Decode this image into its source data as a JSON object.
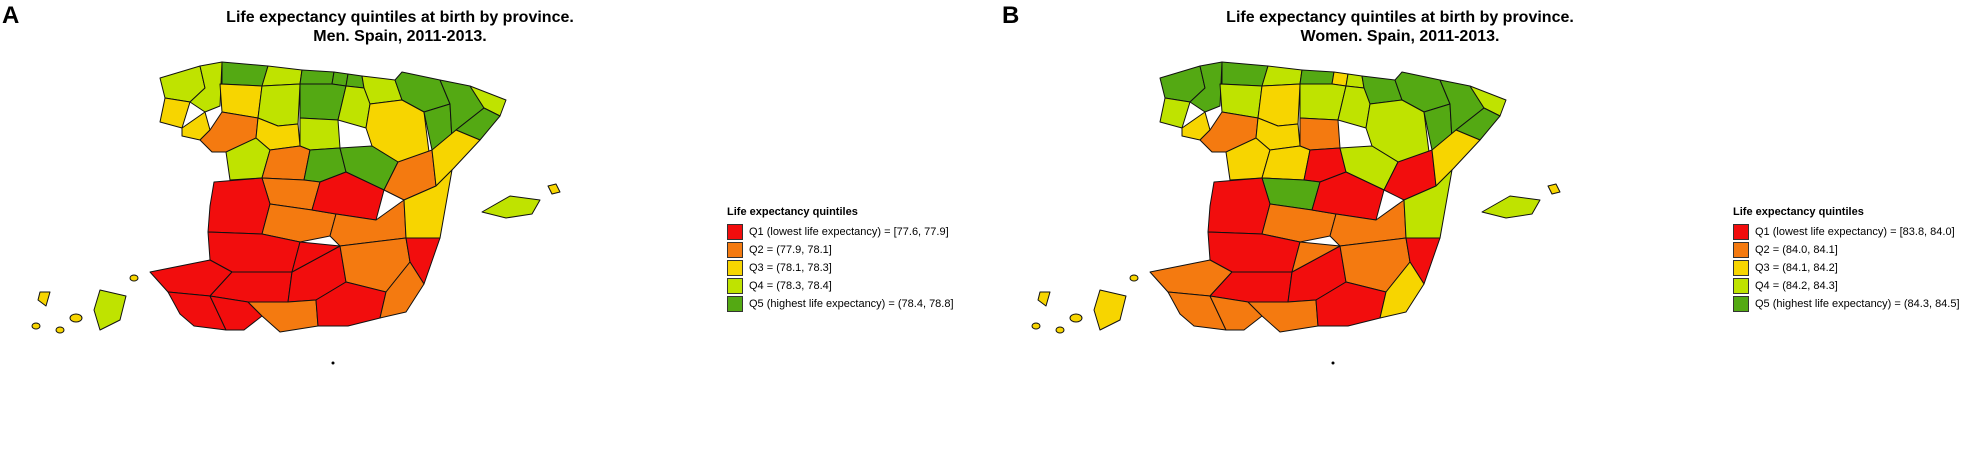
{
  "colors": {
    "q1": "#f20d0d",
    "q2": "#f47a10",
    "q3": "#f7d500",
    "q4": "#bfe300",
    "q5": "#54a913"
  },
  "panels": [
    {
      "letter": "A",
      "title_line1": "Life expectancy quintiles at birth by province.",
      "title_line2": "Men. Spain, 2011-2013.",
      "legend": {
        "title": "Life expectancy quintiles",
        "items": [
          {
            "label": "Q1 (lowest life expectancy) = [77.6, 77.9]",
            "quintile": "q1"
          },
          {
            "label": "Q2 = (77.9, 78.1]",
            "quintile": "q2"
          },
          {
            "label": "Q3 = (78.1, 78.3]",
            "quintile": "q3"
          },
          {
            "label": "Q4 = (78.3, 78.4]",
            "quintile": "q4"
          },
          {
            "label": "Q5 (highest life expectancy) = (78.4, 78.8]",
            "quintile": "q5"
          }
        ]
      },
      "provinces": [
        "q4",
        "q3",
        "q4",
        "q3",
        "q5",
        "q4",
        "q5",
        "q5",
        "q5",
        "q4",
        "q3",
        "q4",
        "q5",
        "q4",
        "q5",
        "q2",
        "q3",
        "q4",
        "q3",
        "q5",
        "q5",
        "q4",
        "q5",
        "q4",
        "q2",
        "q5",
        "q5",
        "q2",
        "q2",
        "q3",
        "q1",
        "q2",
        "q1",
        "q1",
        "q2",
        "q3",
        "q1",
        "q1",
        "q1",
        "q1",
        "q2",
        "q1",
        "q1",
        "q1",
        "q2",
        "q1",
        "q2",
        "q4",
        "q3",
        "q3",
        "q4"
      ]
    },
    {
      "letter": "B",
      "title_line1": "Life expectancy quintiles at birth by province.",
      "title_line2": "Women. Spain, 2011-2013.",
      "legend": {
        "title": "Life expectancy quintiles",
        "items": [
          {
            "label": "Q1 (lowest life expectancy) = [83.8, 84.0]",
            "quintile": "q1"
          },
          {
            "label": "Q2 = (84.0, 84.1]",
            "quintile": "q2"
          },
          {
            "label": "Q3 = (84.1, 84.2]",
            "quintile": "q3"
          },
          {
            "label": "Q4 = (84.2, 84.3]",
            "quintile": "q4"
          },
          {
            "label": "Q5 (highest life expectancy) = (84.3, 84.5]",
            "quintile": "q5"
          }
        ]
      },
      "provinces": [
        "q5",
        "q4",
        "q5",
        "q3",
        "q5",
        "q4",
        "q5",
        "q3",
        "q4",
        "q5",
        "q4",
        "q3",
        "q4",
        "q4",
        "q5",
        "q2",
        "q3",
        "q2",
        "q4",
        "q5",
        "q5",
        "q4",
        "q5",
        "q3",
        "q3",
        "q1",
        "q4",
        "q1",
        "q5",
        "q3",
        "q1",
        "q2",
        "q1",
        "q1",
        "q2",
        "q4",
        "q2",
        "q1",
        "q1",
        "q2",
        "q2",
        "q1",
        "q2",
        "q2",
        "q2",
        "q1",
        "q3",
        "q4",
        "q3",
        "q3",
        "q3"
      ]
    }
  ]
}
